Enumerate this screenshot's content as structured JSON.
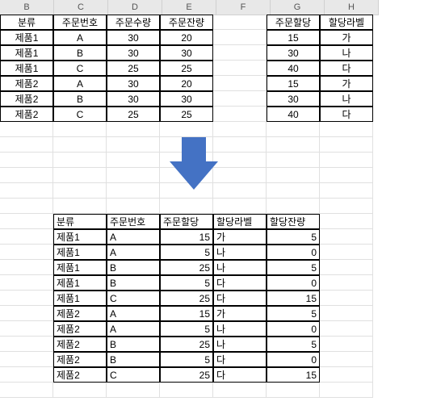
{
  "columns": [
    "B",
    "C",
    "D",
    "E",
    "F",
    "G",
    "H"
  ],
  "colWidths": {
    "B": 66,
    "C": 66,
    "D": 66,
    "E": 66,
    "F": 66,
    "G": 66,
    "H": 66
  },
  "arrow": {
    "fill": "#4472c4"
  },
  "table1": {
    "headers": [
      "분류",
      "주문번호",
      "주문수량",
      "주문잔량"
    ],
    "rows": [
      [
        "제품1",
        "A",
        "30",
        "20"
      ],
      [
        "제품1",
        "B",
        "30",
        "30"
      ],
      [
        "제품1",
        "C",
        "25",
        "25"
      ],
      [
        "제품2",
        "A",
        "30",
        "20"
      ],
      [
        "제품2",
        "B",
        "30",
        "30"
      ],
      [
        "제품2",
        "C",
        "25",
        "25"
      ]
    ]
  },
  "table2": {
    "headers": [
      "주문할당",
      "할당라벨"
    ],
    "rows": [
      [
        "15",
        "가"
      ],
      [
        "30",
        "나"
      ],
      [
        "40",
        "다"
      ],
      [
        "15",
        "가"
      ],
      [
        "30",
        "나"
      ],
      [
        "40",
        "다"
      ]
    ]
  },
  "table3": {
    "headers": [
      "분류",
      "주문번호",
      "주문할당",
      "할당라벨",
      "할당잔량"
    ],
    "rows": [
      [
        "제품1",
        "A",
        "15",
        "가",
        "5"
      ],
      [
        "제품1",
        "A",
        "5",
        "나",
        "0"
      ],
      [
        "제품1",
        "B",
        "25",
        "나",
        "5"
      ],
      [
        "제품1",
        "B",
        "5",
        "다",
        "0"
      ],
      [
        "제품1",
        "C",
        "25",
        "다",
        "15"
      ],
      [
        "제품2",
        "A",
        "15",
        "가",
        "5"
      ],
      [
        "제품2",
        "A",
        "5",
        "나",
        "0"
      ],
      [
        "제품2",
        "B",
        "25",
        "나",
        "5"
      ],
      [
        "제품2",
        "B",
        "5",
        "다",
        "0"
      ],
      [
        "제품2",
        "C",
        "25",
        "다",
        "15"
      ]
    ]
  }
}
